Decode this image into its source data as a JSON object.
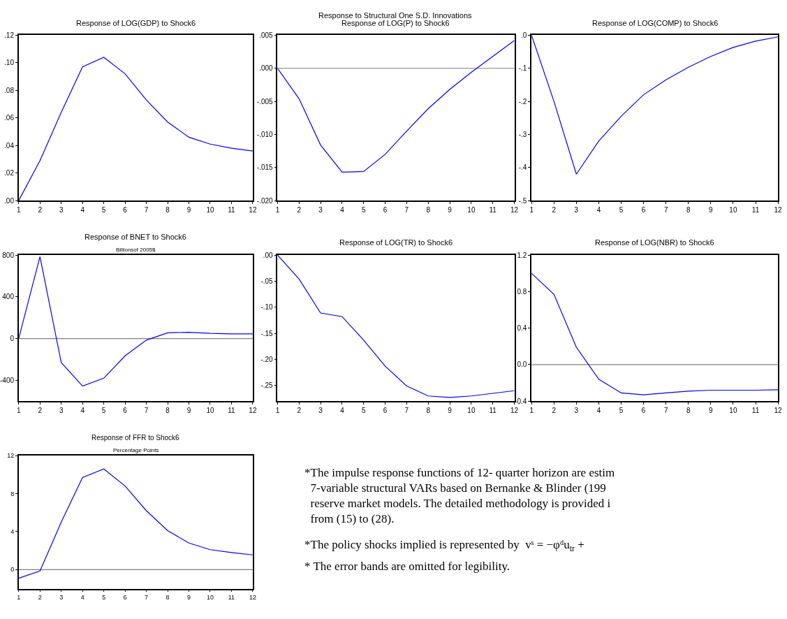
{
  "chart_data": [
    {
      "type": "line",
      "title": "Response of LOG(GDP) to Shock6",
      "x": [
        1,
        2,
        3,
        4,
        5,
        6,
        7,
        8,
        9,
        10,
        11,
        12
      ],
      "xlim": [
        1,
        12
      ],
      "xticks": [
        1,
        2,
        3,
        4,
        5,
        6,
        7,
        8,
        9,
        10,
        11,
        12
      ],
      "ylim": [
        0,
        0.12
      ],
      "yticks": [
        {
          "value": 0,
          "label": ".00"
        },
        {
          "value": 0.02,
          "label": ".02"
        },
        {
          "value": 0.04,
          "label": ".04"
        },
        {
          "value": 0.06,
          "label": ".06"
        },
        {
          "value": 0.08,
          "label": ".08"
        },
        {
          "value": 0.1,
          "label": ".10"
        },
        {
          "value": 0.12,
          "label": ".12"
        }
      ],
      "series": [
        {
          "color": "#0000ff",
          "values": [
            0,
            0.029,
            0.064,
            0.097,
            0.104,
            0.092,
            0.073,
            0.057,
            0.046,
            0.041,
            0.038,
            0.036
          ]
        }
      ],
      "grid": false
    },
    {
      "type": "line",
      "title": "Response of LOG(P) to Shock6",
      "x": [
        1,
        2,
        3,
        4,
        5,
        6,
        7,
        8,
        9,
        10,
        11,
        12
      ],
      "xlim": [
        1,
        12
      ],
      "xticks": [
        1,
        2,
        3,
        4,
        5,
        6,
        7,
        8,
        9,
        10,
        11,
        12
      ],
      "ylim": [
        -0.02,
        0.005
      ],
      "yticks": [
        {
          "value": -0.02,
          "label": "-.020"
        },
        {
          "value": -0.015,
          "label": "-.015"
        },
        {
          "value": -0.01,
          "label": "-.010"
        },
        {
          "value": -0.005,
          "label": "-.005"
        },
        {
          "value": 0,
          "label": ".000"
        },
        {
          "value": 0.005,
          "label": ".005"
        }
      ],
      "series": [
        {
          "color": "#0000ff",
          "values": [
            0,
            -0.0046,
            -0.0116,
            -0.0157,
            -0.0156,
            -0.013,
            -0.0095,
            -0.0061,
            -0.0032,
            -0.0006,
            0.0018,
            0.0042
          ]
        }
      ],
      "ref_lines": [
        {
          "axis": "y",
          "value": 0,
          "color": "#808080"
        }
      ],
      "grid": false
    },
    {
      "type": "line",
      "title": "Response of LOG(COMP) to Shock6",
      "x": [
        1,
        2,
        3,
        4,
        5,
        6,
        7,
        8,
        9,
        10,
        11,
        12
      ],
      "xlim": [
        1,
        12
      ],
      "xticks": [
        1,
        2,
        3,
        4,
        5,
        6,
        7,
        8,
        9,
        10,
        11,
        12
      ],
      "ylim": [
        -0.5,
        0
      ],
      "yticks": [
        {
          "value": -0.5,
          "label": "-.5"
        },
        {
          "value": -0.4,
          "label": "-.4"
        },
        {
          "value": -0.3,
          "label": "-.3"
        },
        {
          "value": -0.2,
          "label": "-.2"
        },
        {
          "value": -0.1,
          "label": "-.1"
        },
        {
          "value": 0,
          "label": ".0"
        }
      ],
      "series": [
        {
          "color": "#0000ff",
          "values": [
            0,
            -0.2,
            -0.42,
            -0.32,
            -0.245,
            -0.18,
            -0.135,
            -0.097,
            -0.064,
            -0.037,
            -0.018,
            -0.005
          ]
        }
      ],
      "grid": false
    },
    {
      "type": "line",
      "title": "Response of BNET to Shock6",
      "subtitle": "Billionsof 2005$",
      "x": [
        1,
        2,
        3,
        4,
        5,
        6,
        7,
        8,
        9,
        10,
        11,
        12
      ],
      "xlim": [
        1,
        12
      ],
      "xticks": [
        1,
        2,
        3,
        4,
        5,
        6,
        7,
        8,
        9,
        10,
        11,
        12
      ],
      "ylim": [
        -600,
        800
      ],
      "yticks": [
        -400,
        0,
        400,
        800
      ],
      "series": [
        {
          "color": "#0000ff",
          "values": [
            0,
            785,
            -230,
            -455,
            -380,
            -165,
            -15,
            55,
            60,
            50,
            45,
            45
          ]
        }
      ],
      "ref_lines": [
        {
          "axis": "y",
          "value": 0,
          "color": "#808080"
        }
      ],
      "grid": false
    },
    {
      "type": "line",
      "title": "Response of LOG(TR) to Shock6",
      "x": [
        1,
        2,
        3,
        4,
        5,
        6,
        7,
        8,
        9,
        10,
        11,
        12
      ],
      "xlim": [
        1,
        12
      ],
      "xticks": [
        1,
        2,
        3,
        4,
        5,
        6,
        7,
        8,
        9,
        10,
        11,
        12
      ],
      "ylim": [
        -0.28,
        0
      ],
      "yticks": [
        {
          "value": -0.25,
          "label": "-.25"
        },
        {
          "value": -0.2,
          "label": "-.20"
        },
        {
          "value": -0.15,
          "label": "-.15"
        },
        {
          "value": -0.1,
          "label": "-.10"
        },
        {
          "value": -0.05,
          "label": "-.05"
        },
        {
          "value": 0,
          "label": ".00"
        }
      ],
      "series": [
        {
          "color": "#0000ff",
          "values": [
            0,
            -0.046,
            -0.111,
            -0.118,
            -0.163,
            -0.213,
            -0.251,
            -0.27,
            -0.273,
            -0.27,
            -0.265,
            -0.26
          ]
        }
      ],
      "grid": false
    },
    {
      "type": "line",
      "title": "Response of LOG(NBR) to Shock6",
      "x": [
        1,
        2,
        3,
        4,
        5,
        6,
        7,
        8,
        9,
        10,
        11,
        12
      ],
      "xlim": [
        1,
        12
      ],
      "xticks": [
        1,
        2,
        3,
        4,
        5,
        6,
        7,
        8,
        9,
        10,
        11,
        12
      ],
      "ylim": [
        -0.4,
        1.2
      ],
      "yticks": [
        {
          "value": -0.4,
          "label": "-0.4"
        },
        {
          "value": 0,
          "label": "0.0"
        },
        {
          "value": 0.4,
          "label": "0.4"
        },
        {
          "value": 0.8,
          "label": "0.8"
        },
        {
          "value": 1.2,
          "label": "1.2"
        }
      ],
      "series": [
        {
          "color": "#0000ff",
          "values": [
            1.0,
            0.77,
            0.19,
            -0.16,
            -0.31,
            -0.33,
            -0.31,
            -0.29,
            -0.28,
            -0.28,
            -0.28,
            -0.275
          ]
        }
      ],
      "ref_lines": [
        {
          "axis": "y",
          "value": 0,
          "color": "#808080"
        }
      ],
      "grid": false
    },
    {
      "type": "line",
      "title": "Response of FFR to Shock6",
      "subtitle": "Percentage Points",
      "x": [
        1,
        2,
        3,
        4,
        5,
        6,
        7,
        8,
        9,
        10,
        11,
        12
      ],
      "xlim": [
        1,
        12
      ],
      "xticks": [
        1,
        2,
        3,
        4,
        5,
        6,
        7,
        8,
        9,
        10,
        11,
        12
      ],
      "ylim": [
        -2,
        12
      ],
      "yticks": [
        0,
        4,
        8,
        12
      ],
      "series": [
        {
          "color": "#0000ff",
          "values": [
            -0.9,
            -0.15,
            5.0,
            9.7,
            10.6,
            8.8,
            6.2,
            4.1,
            2.8,
            2.1,
            1.8,
            1.55
          ]
        }
      ],
      "ref_lines": [
        {
          "axis": "y",
          "value": 0,
          "color": "#808080"
        }
      ],
      "grid": false
    },
    {
      "type": "other",
      "title": "Response to Structural One S.D. Innovations",
      "annotations": [
        "*The impulse response functions of 12- quarter horizon are estim\n  7-variable structural VARs based on Bernanke & Blinder (199\n  reserve market models. The detailed methodology is provided i\n  from (15) to (28).",
        "*The policy shocks implied is represented by  vˢ = −φᵈu$_{tr}$ +",
        "* The error bands are omitted for legibility."
      ]
    }
  ]
}
